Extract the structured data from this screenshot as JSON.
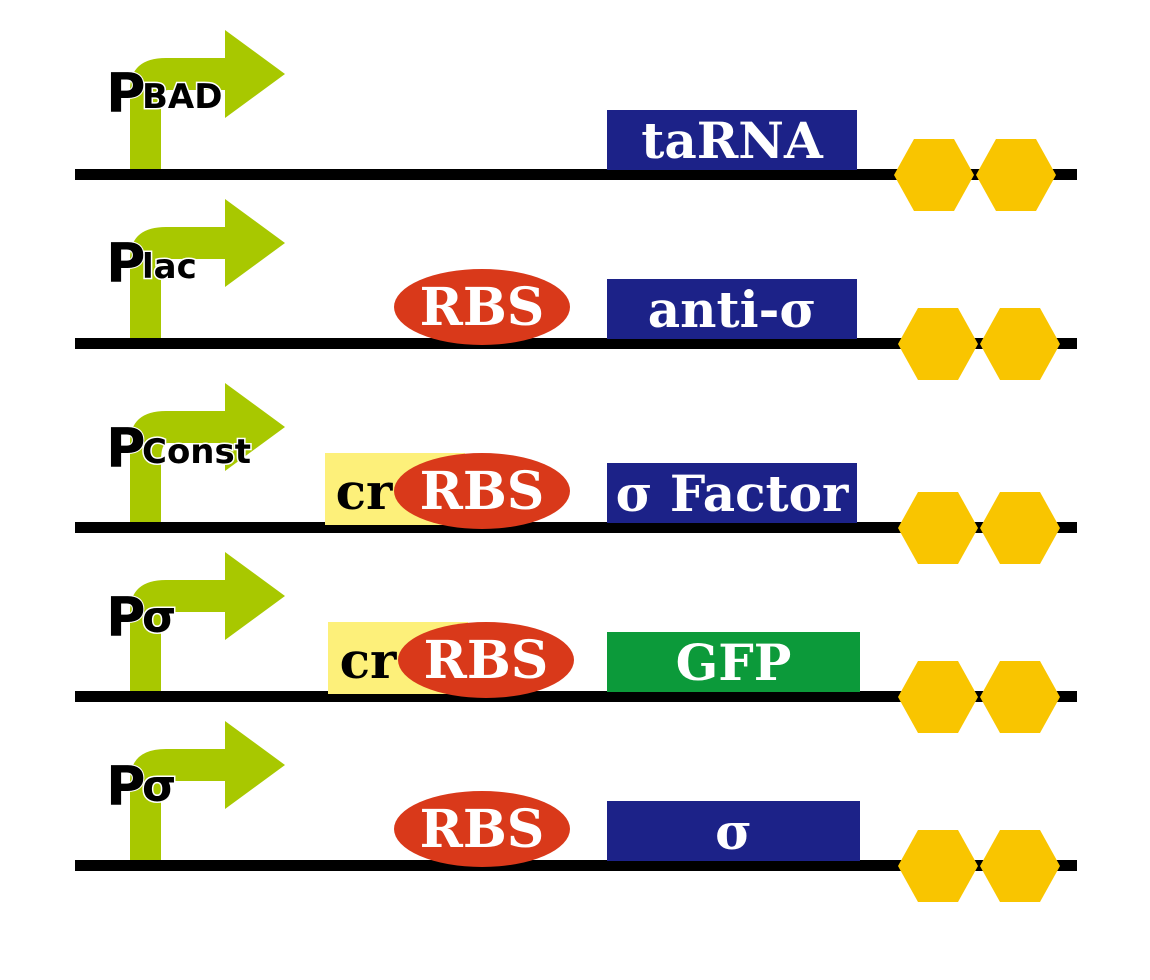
{
  "colors": {
    "backbone": "#000000",
    "promoter": "#a8c800",
    "rbs": "#d9391a",
    "cr": "#fdf07a",
    "gene_blue": "#1c2288",
    "gene_green": "#0c9a3a",
    "terminator": "#f9c500",
    "text_light": "#ffffff",
    "text_dark": "#000000"
  },
  "constructs": [
    {
      "promoter_letter": "P",
      "promoter_sub": "BAD",
      "cr": "",
      "rbs": "",
      "gene": "taRNA",
      "gene_color": "gene_blue"
    },
    {
      "promoter_letter": "P",
      "promoter_sub": "lac",
      "cr": "",
      "rbs": "RBS",
      "gene": "anti-σ",
      "gene_color": "gene_blue"
    },
    {
      "promoter_letter": "P",
      "promoter_sub": "Const",
      "cr": "cr",
      "rbs": "RBS",
      "gene": "σ Factor",
      "gene_color": "gene_blue"
    },
    {
      "promoter_letter": "P",
      "promoter_sub": "σ",
      "cr": "cr",
      "rbs": "RBS",
      "gene": "GFP",
      "gene_color": "gene_green"
    },
    {
      "promoter_letter": "P",
      "promoter_sub": "σ",
      "cr": "",
      "rbs": "RBS",
      "gene": "σ",
      "gene_color": "gene_blue"
    }
  ]
}
